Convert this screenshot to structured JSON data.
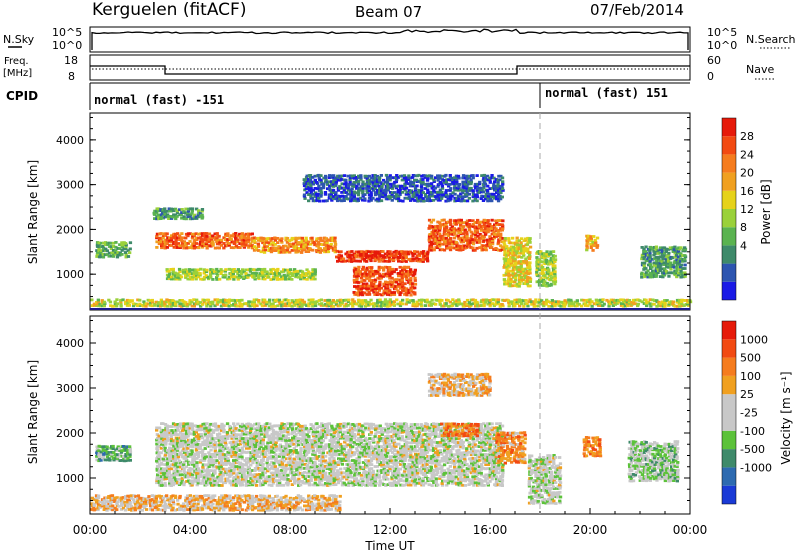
{
  "header": {
    "station": "Kerguelen (fitACF)",
    "beam": "Beam 07",
    "date": "07/Feb/2014"
  },
  "nsky_panel": {
    "left_label": "N.Sky",
    "right_label": "N.Search",
    "left_ticks": [
      "10^5",
      "10^0"
    ],
    "right_ticks": [
      "10^5",
      "10^0"
    ]
  },
  "freq_panel": {
    "left_label_1": "Freq.",
    "left_label_2": "[MHz]",
    "right_label": "Nave",
    "left_ticks": [
      "18",
      "8"
    ],
    "right_ticks": [
      "60",
      "0"
    ]
  },
  "cpid": {
    "label": "CPID",
    "mode_1": "normal (fast) -151",
    "mode_2": "normal (fast) 151"
  },
  "chart_data": [
    {
      "type": "heatmap",
      "name": "power",
      "ylabel": "Slant Range [km]",
      "yticks": [
        "4000",
        "3000",
        "2000",
        "1000"
      ],
      "ylim": [
        200,
        4600
      ],
      "xlim": [
        0,
        24
      ],
      "colorbar_label": "Power [dB]",
      "colorbar_ticks": [
        "28",
        "24",
        "20",
        "16",
        "12",
        "8",
        "4"
      ],
      "colors": [
        "#1a1ae6",
        "#2d55b0",
        "#3e8a6a",
        "#5ab350",
        "#9ad13a",
        "#e6d21a",
        "#f0a020",
        "#f57c1e",
        "#f24a12",
        "#e61a0a"
      ],
      "blobs": [
        {
          "t0": 0.2,
          "t1": 1.6,
          "r0": 1350,
          "r1": 1700,
          "level": 0.35
        },
        {
          "t0": 2.6,
          "t1": 6.5,
          "r0": 1550,
          "r1": 1900,
          "level": 0.8
        },
        {
          "t0": 6.5,
          "t1": 9.8,
          "r0": 1450,
          "r1": 1800,
          "level": 0.7
        },
        {
          "t0": 9.8,
          "t1": 13.5,
          "r0": 1250,
          "r1": 1500,
          "level": 0.9
        },
        {
          "t0": 10.5,
          "t1": 13.0,
          "r0": 500,
          "r1": 1150,
          "level": 0.85
        },
        {
          "t0": 13.5,
          "t1": 16.5,
          "r0": 1500,
          "r1": 2200,
          "level": 0.8
        },
        {
          "t0": 3.0,
          "t1": 9.0,
          "r0": 850,
          "r1": 1100,
          "level": 0.45
        },
        {
          "t0": 2.5,
          "t1": 4.5,
          "r0": 2200,
          "r1": 2450,
          "level": 0.3
        },
        {
          "t0": 16.5,
          "t1": 17.6,
          "r0": 700,
          "r1": 1800,
          "level": 0.55
        },
        {
          "t0": 17.8,
          "t1": 18.6,
          "r0": 700,
          "r1": 1500,
          "level": 0.45
        },
        {
          "t0": 19.8,
          "t1": 20.3,
          "r0": 1500,
          "r1": 1850,
          "level": 0.6
        },
        {
          "t0": 22.0,
          "t1": 23.8,
          "r0": 900,
          "r1": 1600,
          "level": 0.3
        },
        {
          "t0": 0.0,
          "t1": 24.0,
          "r0": 250,
          "r1": 420,
          "level": 0.5
        },
        {
          "t0": 8.5,
          "t1": 16.5,
          "r0": 2600,
          "r1": 3200,
          "level": 0.15
        }
      ]
    },
    {
      "type": "heatmap",
      "name": "velocity",
      "xlabel": "Time UT",
      "xticks": [
        "00:00",
        "04:00",
        "08:00",
        "12:00",
        "16:00",
        "20:00",
        "00:00"
      ],
      "ylabel": "Slant Range [km]",
      "yticks": [
        "4000",
        "3000",
        "2000",
        "1000"
      ],
      "ylim": [
        200,
        4600
      ],
      "xlim": [
        0,
        24
      ],
      "colorbar_label": "Velocity [m s⁻¹]",
      "colorbar_ticks": [
        "1000",
        "500",
        "100",
        "25",
        "-25",
        "-100",
        "-500",
        "-1000"
      ],
      "colors": [
        "#1a3ad6",
        "#2d6ab0",
        "#3e8a6a",
        "#5cc23a",
        "#c8c8c8",
        "#c8c8c8",
        "#f0a020",
        "#f57c1e",
        "#f24a12",
        "#e61a0a"
      ],
      "blobs": [
        {
          "t0": 0.2,
          "t1": 1.6,
          "r0": 1350,
          "r1": 1700,
          "level": 0.3
        },
        {
          "t0": 2.6,
          "t1": 16.5,
          "r0": 800,
          "r1": 2200,
          "level": 0.48
        },
        {
          "t0": 14.0,
          "t1": 15.5,
          "r0": 1900,
          "r1": 2200,
          "level": 0.75
        },
        {
          "t0": 16.2,
          "t1": 17.4,
          "r0": 1300,
          "r1": 2000,
          "level": 0.7
        },
        {
          "t0": 0.0,
          "t1": 10.0,
          "r0": 250,
          "r1": 600,
          "level": 0.62
        },
        {
          "t0": 17.5,
          "t1": 18.8,
          "r0": 400,
          "r1": 1500,
          "level": 0.48
        },
        {
          "t0": 19.7,
          "t1": 20.4,
          "r0": 1450,
          "r1": 1900,
          "level": 0.75
        },
        {
          "t0": 21.5,
          "t1": 23.5,
          "r0": 900,
          "r1": 1800,
          "level": 0.4
        },
        {
          "t0": 13.5,
          "t1": 16.0,
          "r0": 2800,
          "r1": 3300,
          "level": 0.62
        }
      ]
    }
  ]
}
